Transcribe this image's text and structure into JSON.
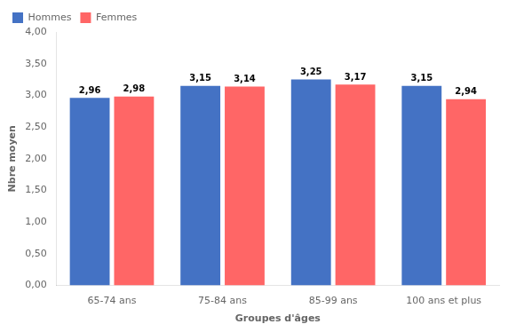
{
  "chart_data": {
    "type": "bar",
    "categories": [
      "65-74 ans",
      "75-84 ans",
      "85-99 ans",
      "100 ans et plus"
    ],
    "series": [
      {
        "name": "Hommes",
        "color": "#4472C4",
        "values": [
          2.96,
          3.15,
          3.25,
          3.15
        ],
        "value_labels": [
          "2,96",
          "3,15",
          "3,25",
          "3,15"
        ]
      },
      {
        "name": "Femmes",
        "color": "#FF6666",
        "values": [
          2.98,
          3.14,
          3.17,
          2.94
        ],
        "value_labels": [
          "2,98",
          "3,14",
          "3,17",
          "2,94"
        ]
      }
    ],
    "xlabel": "Groupes d'âges",
    "ylabel": "Nbre moyen",
    "ylim": [
      0,
      4.0
    ],
    "yticks": [
      {
        "value": 0.0,
        "label": "0,00"
      },
      {
        "value": 0.5,
        "label": "0,50"
      },
      {
        "value": 1.0,
        "label": "1,00"
      },
      {
        "value": 1.5,
        "label": "1,50"
      },
      {
        "value": 2.0,
        "label": "2,00"
      },
      {
        "value": 2.5,
        "label": "2,50"
      },
      {
        "value": 3.0,
        "label": "3,00"
      },
      {
        "value": 3.5,
        "label": "3,50"
      },
      {
        "value": 4.0,
        "label": "4,00"
      }
    ],
    "grid": false,
    "legend": "upper left",
    "data_labels": true
  }
}
